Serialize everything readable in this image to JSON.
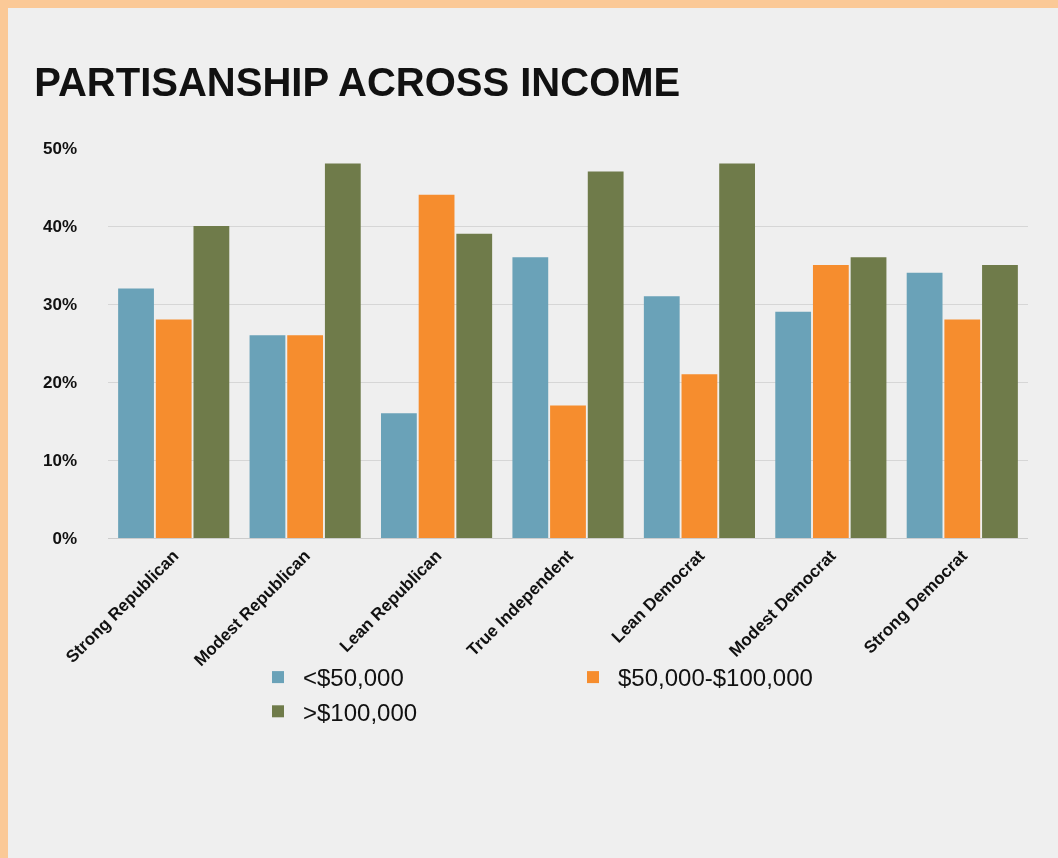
{
  "chart_data": {
    "type": "bar",
    "title": "PARTISANSHIP ACROSS INCOME",
    "categories": [
      "Strong Republican",
      "Modest Republican",
      "Lean Republican",
      "True Independent",
      "Lean Democrat",
      "Modest Democrat",
      "Strong Democrat"
    ],
    "series": [
      {
        "name": "<$50,000",
        "color": "#6aa2b8",
        "values": [
          32,
          26,
          16,
          36,
          31,
          29,
          34
        ]
      },
      {
        "name": "$50,000-$100,000",
        "color": "#f68d2e",
        "values": [
          28,
          26,
          44,
          17,
          21,
          35,
          28
        ]
      },
      {
        "name": ">$100,000",
        "color": "#6f7b4a",
        "values": [
          40,
          48,
          39,
          47,
          48,
          36,
          35
        ]
      }
    ],
    "ylim": [
      0,
      50
    ],
    "yticks": [
      {
        "value": 0,
        "label": "0%"
      },
      {
        "value": 10,
        "label": "10%"
      },
      {
        "value": 20,
        "label": "20%"
      },
      {
        "value": 30,
        "label": "30%"
      },
      {
        "value": 40,
        "label": "40%"
      },
      {
        "value": 50,
        "label": "50%"
      }
    ],
    "grid": "y",
    "legend": "bottom"
  }
}
